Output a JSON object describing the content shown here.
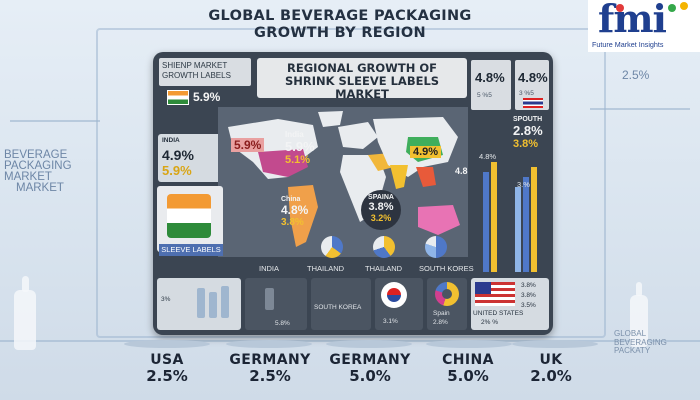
{
  "title": "GLOBAL BEVERAGE PACKAGING GROWTH BY REGION",
  "title_line1": "GLOBAL BEVERAGE PACKAGING",
  "title_line2": "GROWTH BY REGION",
  "logo": {
    "word": "fmi",
    "subtitle": "Future Market Insights",
    "colors": [
      "#1f3f8f",
      "#e23a3a",
      "#35a84a",
      "#f4b400"
    ]
  },
  "side_left": [
    "BEVERAGE",
    "PACKAGING",
    "MARKET",
    "MARKET"
  ],
  "side_right": [
    "GLOBAL",
    "BEVERAGING",
    "PACKATY"
  ],
  "side_pct": "2.5%",
  "panel": {
    "title_line1": "REGIONAL GROWTH OF",
    "title_line2": "SHRINK SLEEVE LABELS MARKET",
    "tag_line1": "SHIENP   MARKET",
    "tag_line2": "GROWTH   LABELS",
    "tag_pct": "5.9%",
    "top_right": {
      "a": "4.8%",
      "a_sub": "5 %5",
      "b": "4.8%",
      "b_sub": "3 %5"
    },
    "sleeve_labels": "SLEEVE LABELS",
    "map_labels": [
      {
        "name": "INDIA",
        "pct1": "4.9%",
        "pct2": "5.9%"
      },
      {
        "name": "",
        "pct1": "5.9%",
        "pct2": ""
      },
      {
        "name": "India",
        "pct1": "5.9%",
        "pct2": "5.1%"
      },
      {
        "name": "",
        "pct1": "4.9%",
        "pct2": ""
      },
      {
        "name": "China",
        "pct1": "4.8%",
        "pct2": "3.8%"
      },
      {
        "name": "SPAINA",
        "pct1": "3.8%",
        "pct2": "3.2%"
      },
      {
        "name": "",
        "pct1": "4.8",
        "pct2": ""
      },
      {
        "name": "SPOUTH",
        "pct1": "2.8%",
        "pct2": "3.8%"
      }
    ],
    "bar_labels": [
      "4.8%",
      "3.%"
    ],
    "bottom_labels": [
      "INDIA",
      "THAILAND",
      "THAILAND",
      "SOUTH KORES"
    ],
    "tiles": [
      {
        "label": "5.8%",
        "sub": "3%"
      },
      {
        "label": "SOUTH KOREA",
        "sub": "3.1%"
      },
      {
        "label": "Spain",
        "sub": "2.8%"
      },
      {
        "label": "UNITED STATES",
        "sub": "2% %"
      },
      {
        "label": "3.8%",
        "sub": "3.8%"
      }
    ],
    "right_small": [
      "3.8%",
      "3.8%",
      "3.5%"
    ]
  },
  "countries": [
    {
      "name": "USA",
      "value": "2.5%"
    },
    {
      "name": "GERMANY",
      "value": "2.5%"
    },
    {
      "name": "GERMANY",
      "value": "5.0%"
    },
    {
      "name": "CHINA",
      "value": "5.0%"
    },
    {
      "name": "UK",
      "value": "2.0%"
    }
  ]
}
